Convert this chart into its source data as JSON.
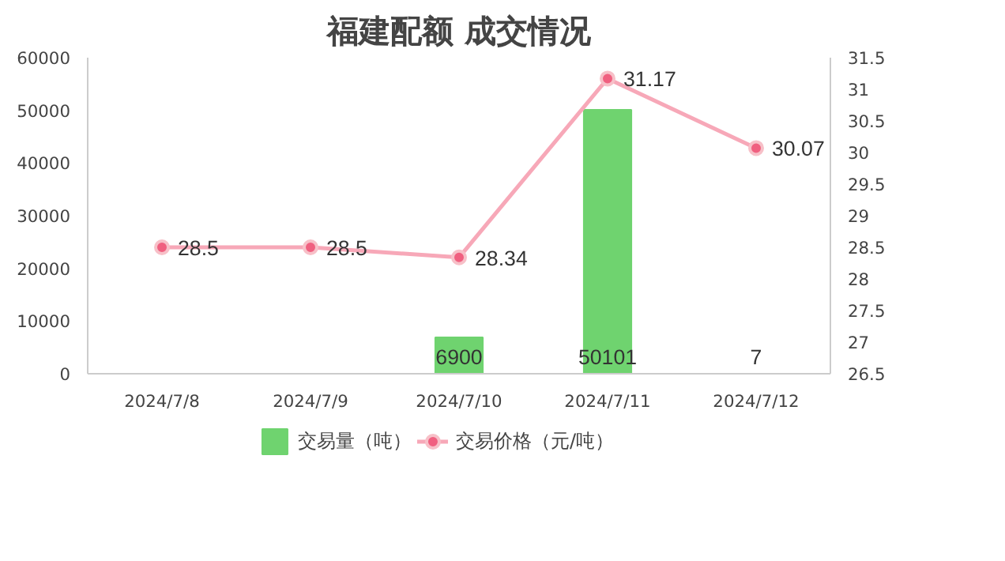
{
  "chart_data": {
    "type": "bar",
    "title": "福建配额 成交情况",
    "categories": [
      "2024/7/8",
      "2024/7/9",
      "2024/7/10",
      "2024/7/11",
      "2024/7/12"
    ],
    "series": [
      {
        "name": "交易量（吨）",
        "type": "bar",
        "color": "#6fd36f",
        "values": [
          null,
          null,
          6900,
          50101,
          7
        ]
      },
      {
        "name": "交易价格（元/吨）",
        "type": "line",
        "axis": "y2",
        "color": "#f7a8b8",
        "marker": "circle",
        "values": [
          28.5,
          28.5,
          28.34,
          31.17,
          30.07
        ]
      }
    ],
    "ylim": [
      0,
      60000
    ],
    "yticks": [
      0,
      10000,
      20000,
      30000,
      40000,
      50000,
      60000
    ],
    "y2lim": [
      26.5,
      31.5
    ],
    "y2ticks": [
      26.5,
      27,
      27.5,
      28,
      28.5,
      29,
      29.5,
      30,
      30.5,
      31,
      31.5
    ],
    "data_labels": true,
    "legend": "bottom"
  }
}
